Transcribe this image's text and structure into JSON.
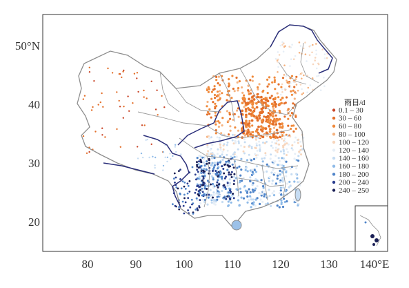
{
  "map": {
    "x_ticks": [
      {
        "lon": 80,
        "label": "80"
      },
      {
        "lon": 90,
        "label": "90"
      },
      {
        "lon": 100,
        "label": "100"
      },
      {
        "lon": 110,
        "label": "110"
      },
      {
        "lon": 120,
        "label": "120"
      },
      {
        "lon": 130,
        "label": "130"
      },
      {
        "lon": 140,
        "label": "140°E"
      }
    ],
    "y_ticks": [
      {
        "lat": 50,
        "label": "50°N"
      },
      {
        "lat": 40,
        "label": "40"
      },
      {
        "lat": 30,
        "label": "30"
      },
      {
        "lat": 20,
        "label": "20"
      }
    ],
    "lon_range": [
      71,
      142
    ],
    "lat_range": [
      15,
      57
    ],
    "colors": {
      "frame": "#333333",
      "province_border": "#9a9a9a",
      "plateau_outline": "#2b2f7a",
      "country_outline": "#8d8d8d"
    }
  },
  "legend": {
    "title": "雨日/d",
    "position": "right",
    "items": [
      {
        "label": "0.1 – 30",
        "color": "#c9472a"
      },
      {
        "label": "30 – 60",
        "color": "#e36f2a"
      },
      {
        "label": "60 – 80",
        "color": "#f08a3c"
      },
      {
        "label": "80 – 100",
        "color": "#f5b381"
      },
      {
        "label": "100 – 120",
        "color": "#f7d6bd"
      },
      {
        "label": "120 – 140",
        "color": "#e6eef6"
      },
      {
        "label": "140 – 160",
        "color": "#c6dcf2"
      },
      {
        "label": "160 – 180",
        "color": "#8fbbe8"
      },
      {
        "label": "180 – 200",
        "color": "#4f84c9"
      },
      {
        "label": "200 – 240",
        "color": "#2a3d8f"
      },
      {
        "label": "240 – 250",
        "color": "#1a1f55"
      }
    ]
  }
}
